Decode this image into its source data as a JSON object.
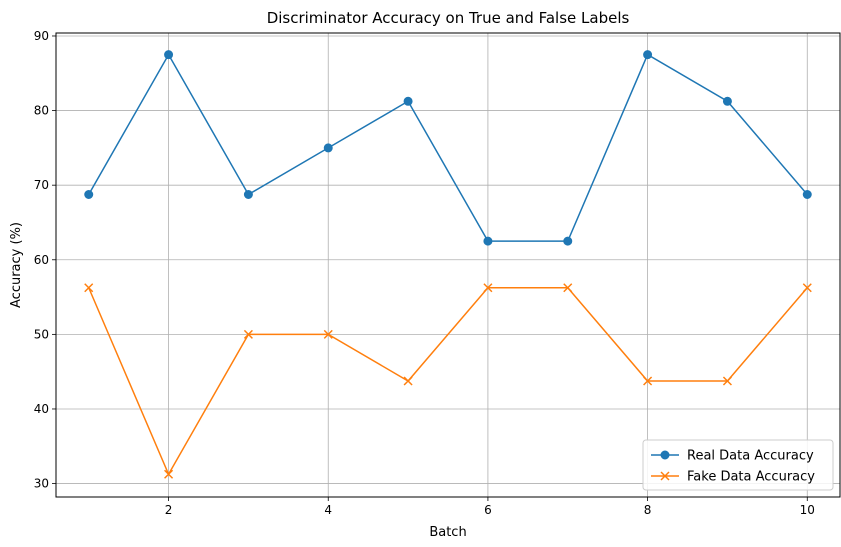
{
  "chart_data": {
    "type": "line",
    "title": "Discriminator Accuracy on True and False Labels",
    "xlabel": "Batch",
    "ylabel": "Accuracy (%)",
    "x": [
      1,
      2,
      3,
      4,
      5,
      6,
      7,
      8,
      9,
      10
    ],
    "xlim": [
      0.59,
      10.41
    ],
    "ylim": [
      28.2,
      90.4
    ],
    "xticks": [
      2,
      4,
      6,
      8,
      10
    ],
    "yticks": [
      30,
      40,
      50,
      60,
      70,
      80,
      90
    ],
    "grid": true,
    "legend_position": "lower-right",
    "series": [
      {
        "name": "Real Data Accuracy",
        "color": "#1f77b4",
        "marker": "circle",
        "values": [
          68.75,
          87.5,
          68.75,
          75.0,
          81.25,
          62.5,
          62.5,
          87.5,
          81.25,
          68.75
        ]
      },
      {
        "name": "Fake Data Accuracy",
        "color": "#ff7f0e",
        "marker": "x",
        "values": [
          56.25,
          31.25,
          50.0,
          50.0,
          43.75,
          56.25,
          56.25,
          43.75,
          43.75,
          56.25
        ]
      }
    ]
  }
}
